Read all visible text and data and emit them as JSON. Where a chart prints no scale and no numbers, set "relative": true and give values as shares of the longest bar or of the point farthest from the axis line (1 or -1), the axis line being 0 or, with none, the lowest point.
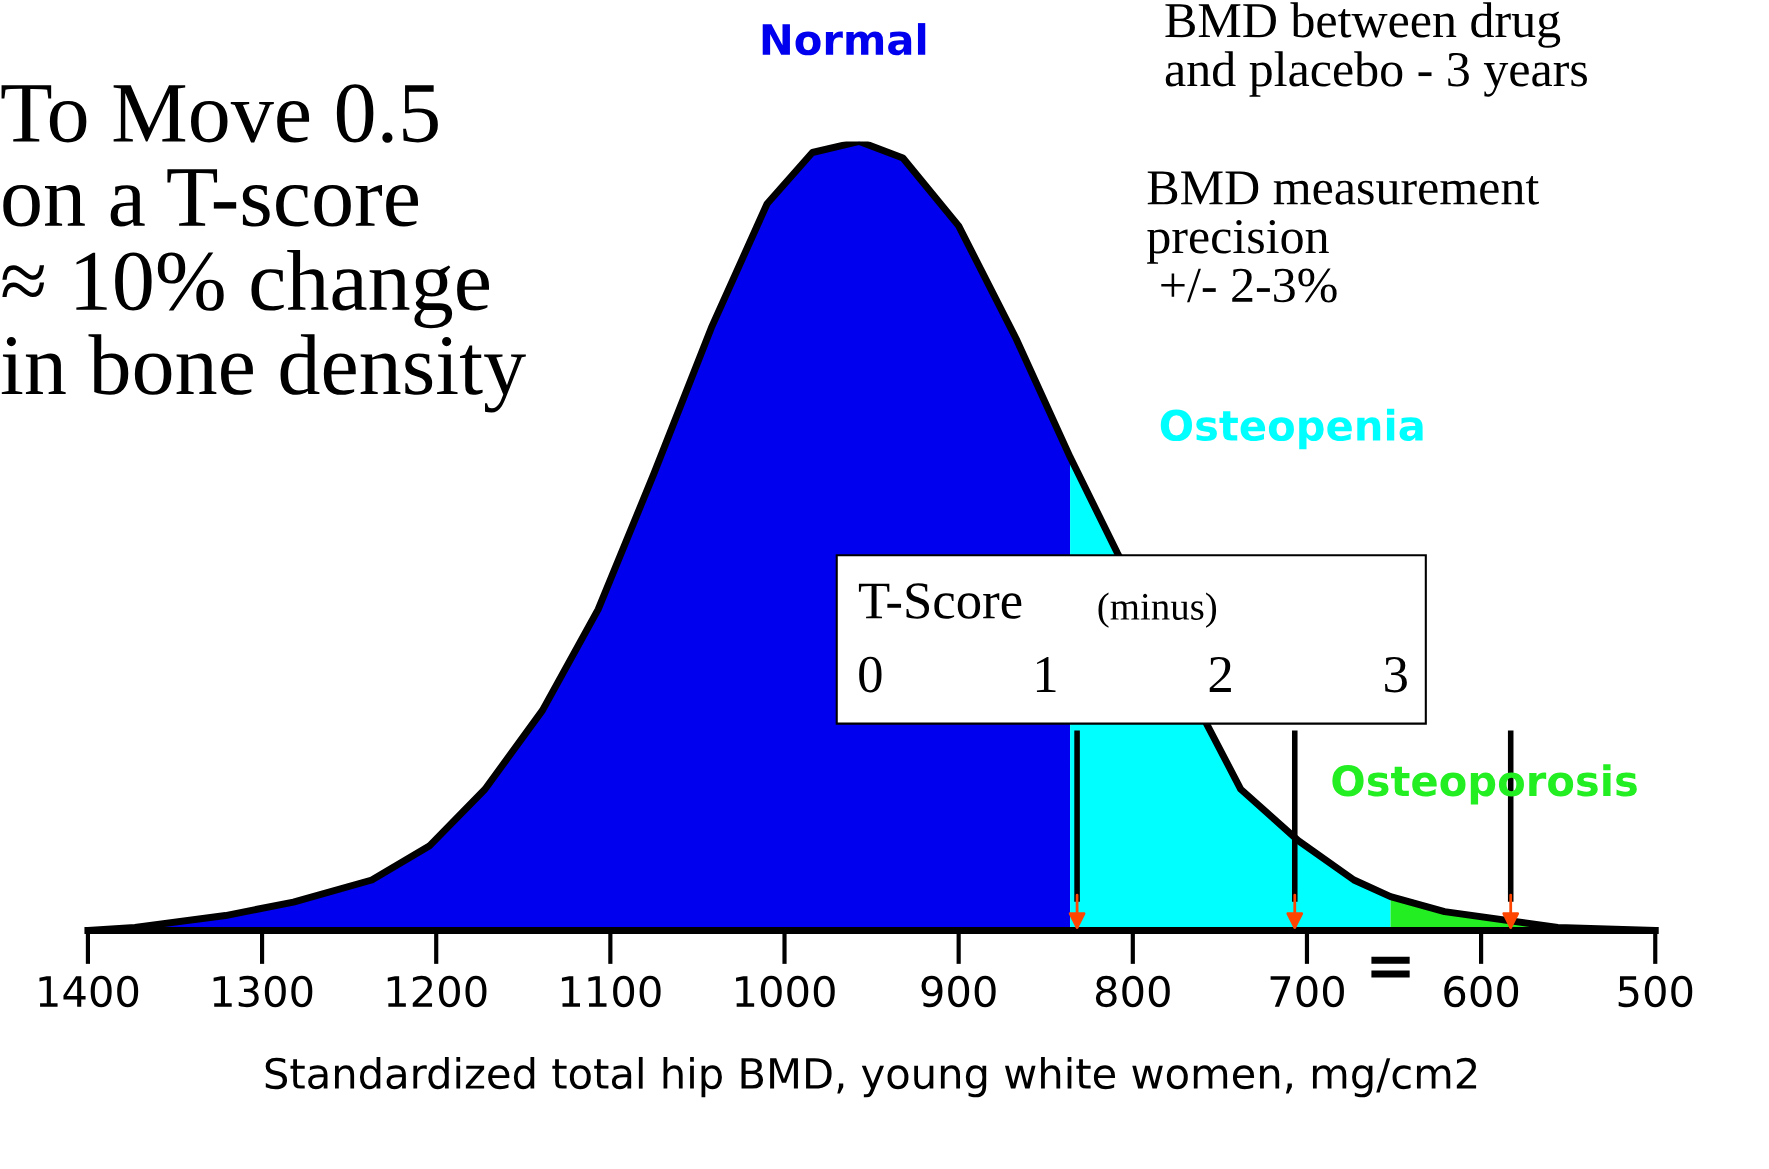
{
  "chart_data": {
    "type": "area",
    "relative": true,
    "xlabel": "Standardized total hip BMD, young white women, mg/cm2",
    "xlim": [
      1400,
      500
    ],
    "xticks": [
      1400,
      1300,
      1200,
      1100,
      1000,
      900,
      800,
      700,
      600,
      500
    ],
    "series": [
      {
        "name": "Normal",
        "color": "#0000ee",
        "x": [
          1400,
          1373,
          1321,
          1282,
          1237,
          1204,
          1172,
          1139,
          1107,
          1075,
          1042,
          1010,
          984,
          957,
          932,
          900,
          867,
          836
        ],
        "values": [
          0,
          0.004,
          0.019,
          0.036,
          0.064,
          0.107,
          0.179,
          0.279,
          0.407,
          0.579,
          0.764,
          0.921,
          0.986,
          1,
          0.979,
          0.893,
          0.75,
          0.6
        ]
      },
      {
        "name": "Osteopenia",
        "color": "#00ffff",
        "x": [
          836,
          809,
          738,
          705,
          673,
          652
        ],
        "values": [
          0.6,
          0.479,
          0.179,
          0.114,
          0.064,
          0.043
        ]
      },
      {
        "name": "Osteoporosis",
        "color": "#22ee22",
        "x": [
          652,
          621,
          556,
          500
        ],
        "values": [
          0.043,
          0.024,
          0.004,
          0
        ]
      },
      {
        "type": "line",
        "color": "#000000",
        "x": [
          1400,
          1373,
          1321,
          1282,
          1237,
          1204,
          1172,
          1139,
          1107,
          1075,
          1042,
          1010,
          984,
          957,
          932,
          900,
          867,
          836,
          809,
          738,
          705,
          673,
          652,
          621,
          556,
          500
        ],
        "values": [
          0,
          0.004,
          0.019,
          0.036,
          0.064,
          0.107,
          0.179,
          0.279,
          0.407,
          0.579,
          0.764,
          0.921,
          0.986,
          1,
          0.979,
          0.893,
          0.75,
          0.6,
          0.479,
          0.179,
          0.114,
          0.064,
          0.043,
          0.024,
          0.004,
          0
        ]
      }
    ],
    "ref_lines": [
      {
        "axis": "x",
        "value": 832,
        "color": "#000000"
      },
      {
        "axis": "x",
        "value": 707,
        "color": "#000000"
      },
      {
        "axis": "x",
        "value": 583,
        "color": "#000000"
      }
    ],
    "annotations": [
      "To Move 0.5\non a T-score\n≈ 10% change\nin bone density",
      "BMD between drug\nand placebo - 3 years",
      "BMD measurement\nprecision\n +/- 2-3%",
      "T-Score",
      "(minus)",
      "0",
      "1",
      "2",
      "3",
      {
        "text": "=",
        "x": 652,
        "y": 0
      }
    ],
    "grid": false,
    "legend": false
  }
}
